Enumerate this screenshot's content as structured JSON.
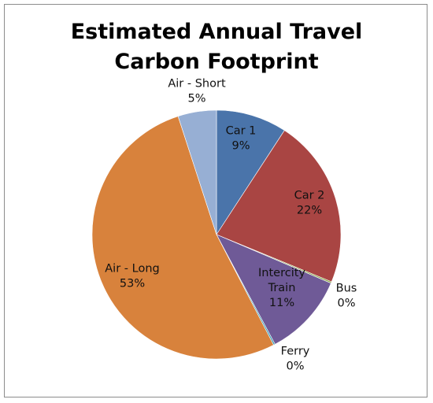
{
  "chart_data": {
    "type": "pie",
    "title_lines": [
      "Estimated Annual Travel",
      "Carbon Footprint"
    ],
    "slices": [
      {
        "name": "Car 1",
        "percent_label": "9%",
        "value": 9.2,
        "color": "#4a74aa"
      },
      {
        "name": "Car 2",
        "percent_label": "22%",
        "value": 22.0,
        "color": "#a94543"
      },
      {
        "name": "Bus",
        "percent_label": "0%",
        "value": 0.2,
        "color": "#8aa34a"
      },
      {
        "name": "Intercity Train",
        "percent_label": "11%",
        "value": 10.8,
        "color": "#6f5a97"
      },
      {
        "name": "Ferry",
        "percent_label": "0%",
        "value": 0.2,
        "color": "#3d9bb5"
      },
      {
        "name": "Air - Long",
        "percent_label": "53%",
        "value": 52.6,
        "color": "#d8823c"
      },
      {
        "name": "Air - Short",
        "percent_label": "5%",
        "value": 5.0,
        "color": "#97afd4"
      }
    ],
    "legend": "none",
    "data_labels": "name and percentage"
  }
}
